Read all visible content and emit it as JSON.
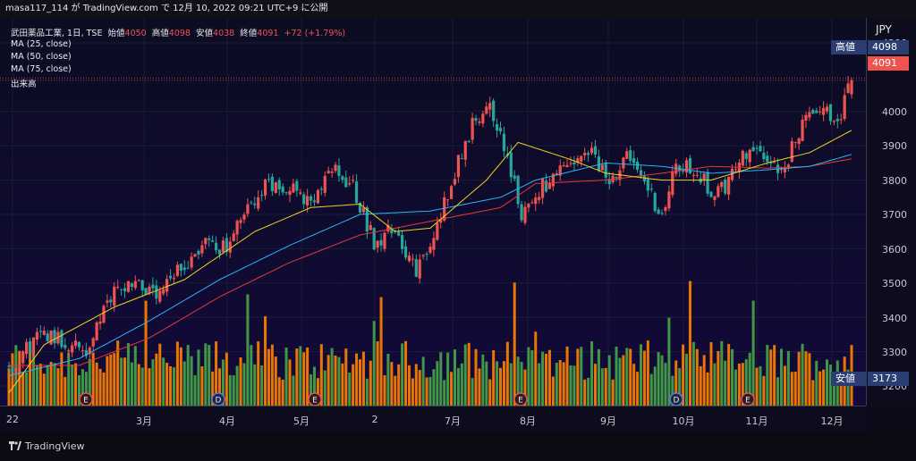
{
  "topbar": {
    "text": "masa117_114 が TradingView.com で 12月 10, 2022 09:21 UTC+9 に公開"
  },
  "legend": {
    "symbol_line": "武田薬品工業, 1日, TSE",
    "open_label": "始値",
    "open": "4050",
    "high_label": "高値",
    "high": "4098",
    "low_label": "安値",
    "low": "4038",
    "close_label": "終値",
    "close": "4091",
    "change": "+72 (+1.79%)",
    "ma25": "MA (25, close)",
    "ma50": "MA (50, close)",
    "ma75": "MA (75, close)",
    "volume": "出来高"
  },
  "axis": {
    "currency": "JPY",
    "price_ticks": [
      "4200",
      "4000",
      "3900",
      "3800",
      "3700",
      "3600",
      "3500",
      "3400",
      "3300",
      "3200"
    ],
    "x_labels": [
      "22",
      "3月",
      "4月",
      "5月",
      "2",
      "7月",
      "8月",
      "9月",
      "10月",
      "11月",
      "12月"
    ]
  },
  "tags": {
    "high_label": "高値",
    "high_value": "4098",
    "last_value": "4091",
    "low_label": "安値",
    "low_value": "3173"
  },
  "events": [
    "E",
    "D",
    "E",
    "E",
    "D",
    "E"
  ],
  "footer": {
    "brand": "TradingView"
  },
  "colors": {
    "up": "#ef5350",
    "down": "#26a69a",
    "vol_up": "#f57c00",
    "vol_down": "#43a047",
    "ma25": "#f2d21b",
    "ma50": "#29b6f6",
    "ma75": "#e53935"
  },
  "chart_data": {
    "type": "candlestick",
    "symbol": "武田薬品工業",
    "interval": "1日",
    "exchange": "TSE",
    "currency": "JPY",
    "y_range": [
      3150,
      4230
    ],
    "last": {
      "open": 4050,
      "high": 4098,
      "low": 4038,
      "close": 4091,
      "change": 72,
      "change_pct": 1.79
    },
    "period_low": 3173,
    "close_path": [
      [
        0,
        3250
      ],
      [
        6,
        3320
      ],
      [
        10,
        3360
      ],
      [
        16,
        3330
      ],
      [
        22,
        3300
      ],
      [
        30,
        3480
      ],
      [
        36,
        3510
      ],
      [
        42,
        3450
      ],
      [
        48,
        3530
      ],
      [
        56,
        3620
      ],
      [
        62,
        3600
      ],
      [
        66,
        3680
      ],
      [
        72,
        3780
      ],
      [
        80,
        3790
      ],
      [
        86,
        3720
      ],
      [
        92,
        3830
      ],
      [
        98,
        3780
      ],
      [
        104,
        3620
      ],
      [
        110,
        3660
      ],
      [
        116,
        3530
      ],
      [
        120,
        3600
      ],
      [
        126,
        3800
      ],
      [
        132,
        3960
      ],
      [
        136,
        4030
      ],
      [
        140,
        3940
      ],
      [
        146,
        3700
      ],
      [
        152,
        3780
      ],
      [
        160,
        3840
      ],
      [
        166,
        3880
      ],
      [
        170,
        3800
      ],
      [
        176,
        3860
      ],
      [
        182,
        3780
      ],
      [
        186,
        3690
      ],
      [
        190,
        3840
      ],
      [
        196,
        3830
      ],
      [
        200,
        3760
      ],
      [
        204,
        3780
      ],
      [
        210,
        3880
      ],
      [
        216,
        3870
      ],
      [
        220,
        3820
      ],
      [
        226,
        3960
      ],
      [
        232,
        4030
      ],
      [
        236,
        3960
      ],
      [
        240,
        4091
      ]
    ],
    "ma_anchor_points": {
      "MA25": [
        [
          0,
          3180
        ],
        [
          10,
          3320
        ],
        [
          30,
          3430
        ],
        [
          50,
          3510
        ],
        [
          70,
          3650
        ],
        [
          86,
          3720
        ],
        [
          100,
          3730
        ],
        [
          110,
          3650
        ],
        [
          120,
          3660
        ],
        [
          136,
          3800
        ],
        [
          145,
          3910
        ],
        [
          160,
          3860
        ],
        [
          170,
          3820
        ],
        [
          186,
          3800
        ],
        [
          200,
          3800
        ],
        [
          216,
          3850
        ],
        [
          228,
          3880
        ],
        [
          240,
          3945
        ]
      ],
      "MA50": [
        [
          0,
          3230
        ],
        [
          20,
          3280
        ],
        [
          40,
          3390
        ],
        [
          60,
          3510
        ],
        [
          80,
          3610
        ],
        [
          100,
          3700
        ],
        [
          120,
          3710
        ],
        [
          140,
          3750
        ],
        [
          150,
          3800
        ],
        [
          170,
          3850
        ],
        [
          186,
          3840
        ],
        [
          200,
          3820
        ],
        [
          216,
          3830
        ],
        [
          228,
          3840
        ],
        [
          240,
          3875
        ]
      ],
      "MA75": [
        [
          0,
          3260
        ],
        [
          20,
          3260
        ],
        [
          40,
          3340
        ],
        [
          60,
          3460
        ],
        [
          80,
          3560
        ],
        [
          100,
          3640
        ],
        [
          120,
          3680
        ],
        [
          140,
          3720
        ],
        [
          150,
          3790
        ],
        [
          170,
          3800
        ],
        [
          186,
          3820
        ],
        [
          200,
          3840
        ],
        [
          216,
          3835
        ],
        [
          228,
          3840
        ],
        [
          240,
          3862
        ]
      ]
    },
    "volume_scale": "relative (no volume axis)"
  }
}
